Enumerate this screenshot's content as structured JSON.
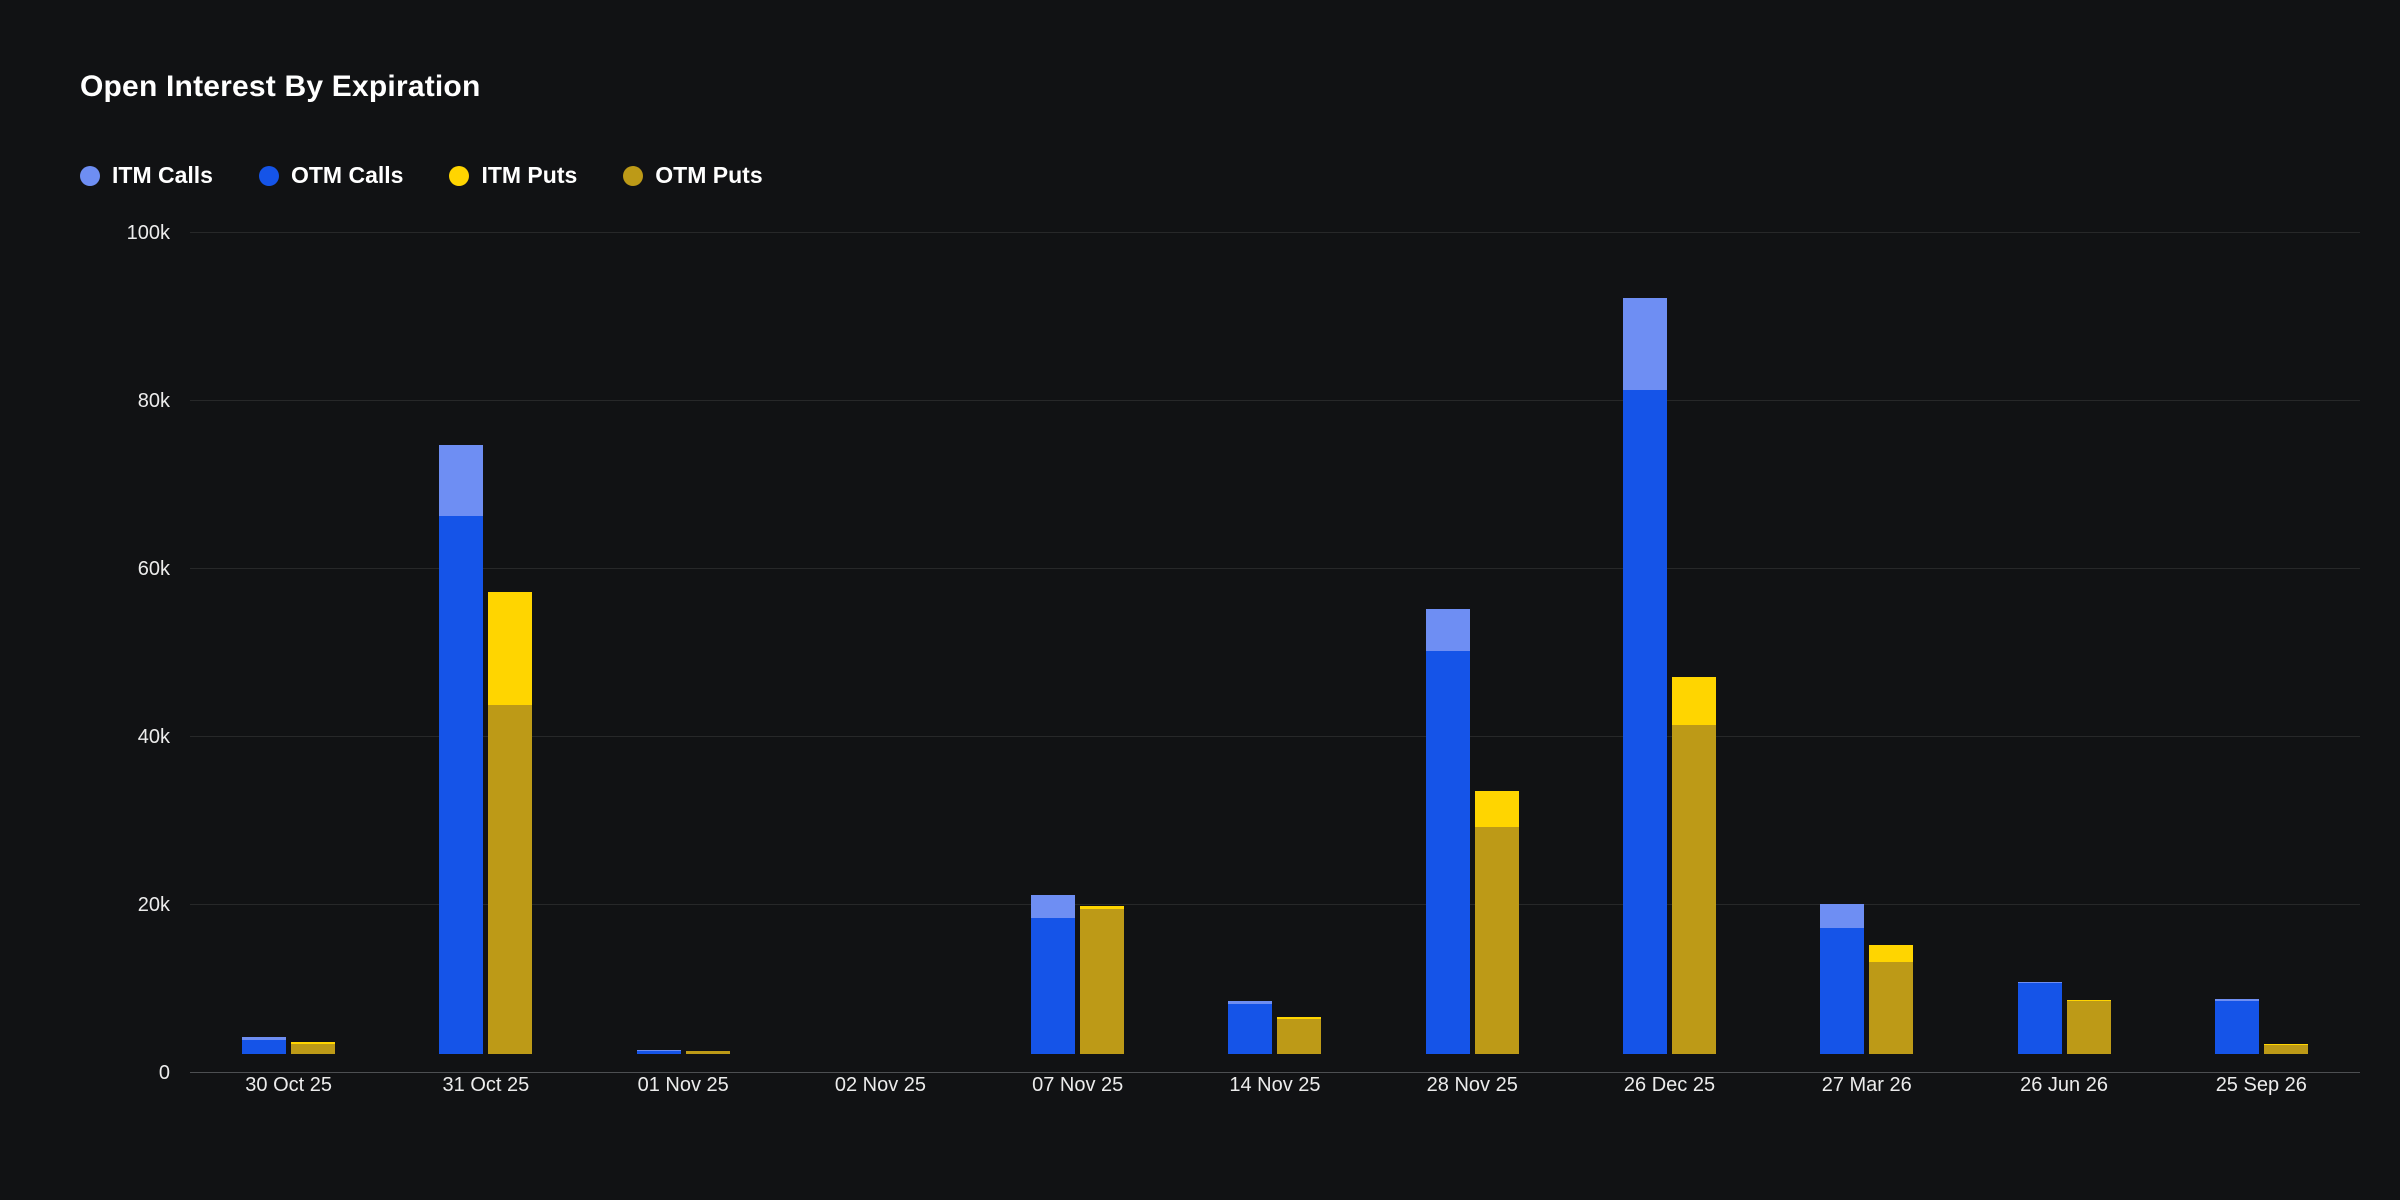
{
  "chart_data": {
    "type": "bar",
    "stacked": true,
    "title": "Open Interest By Expiration",
    "legend_position": "top",
    "legend": [
      "ITM Calls",
      "OTM Calls",
      "ITM Puts",
      "OTM Puts"
    ],
    "categories": [
      "30 Oct 25",
      "31 Oct 25",
      "01 Nov 25",
      "02 Nov 25",
      "07 Nov 25",
      "14 Nov 25",
      "28 Nov 25",
      "26 Dec 25",
      "27 Mar 26",
      "26 Jun 26",
      "25 Sep 26"
    ],
    "ylim": [
      0,
      100000
    ],
    "ytick_labels": [
      "0",
      "20k",
      "40k",
      "60k",
      "80k",
      "100k"
    ],
    "grid": true,
    "background_color": "#111214",
    "stacks": [
      {
        "name": "Calls",
        "series": [
          "OTM Calls",
          "ITM Calls"
        ]
      },
      {
        "name": "Puts",
        "series": [
          "OTM Puts",
          "ITM Puts"
        ]
      }
    ],
    "series": [
      {
        "name": "ITM Calls",
        "color": "#6e8ef3",
        "values": [
          300,
          8500,
          100,
          0,
          2700,
          300,
          5000,
          11000,
          2800,
          200,
          200
        ]
      },
      {
        "name": "OTM Calls",
        "color": "#1554e8",
        "values": [
          1700,
          64000,
          400,
          0,
          16200,
          6000,
          48000,
          79000,
          15000,
          8400,
          6300
        ]
      },
      {
        "name": "ITM Puts",
        "color": "#ffd500",
        "values": [
          200,
          13500,
          100,
          0,
          300,
          200,
          4300,
          5700,
          2000,
          100,
          100
        ]
      },
      {
        "name": "OTM Puts",
        "color": "#bd9a17",
        "values": [
          1200,
          41500,
          300,
          0,
          17300,
          4200,
          27000,
          39200,
          11000,
          6300,
          1100
        ]
      }
    ]
  }
}
